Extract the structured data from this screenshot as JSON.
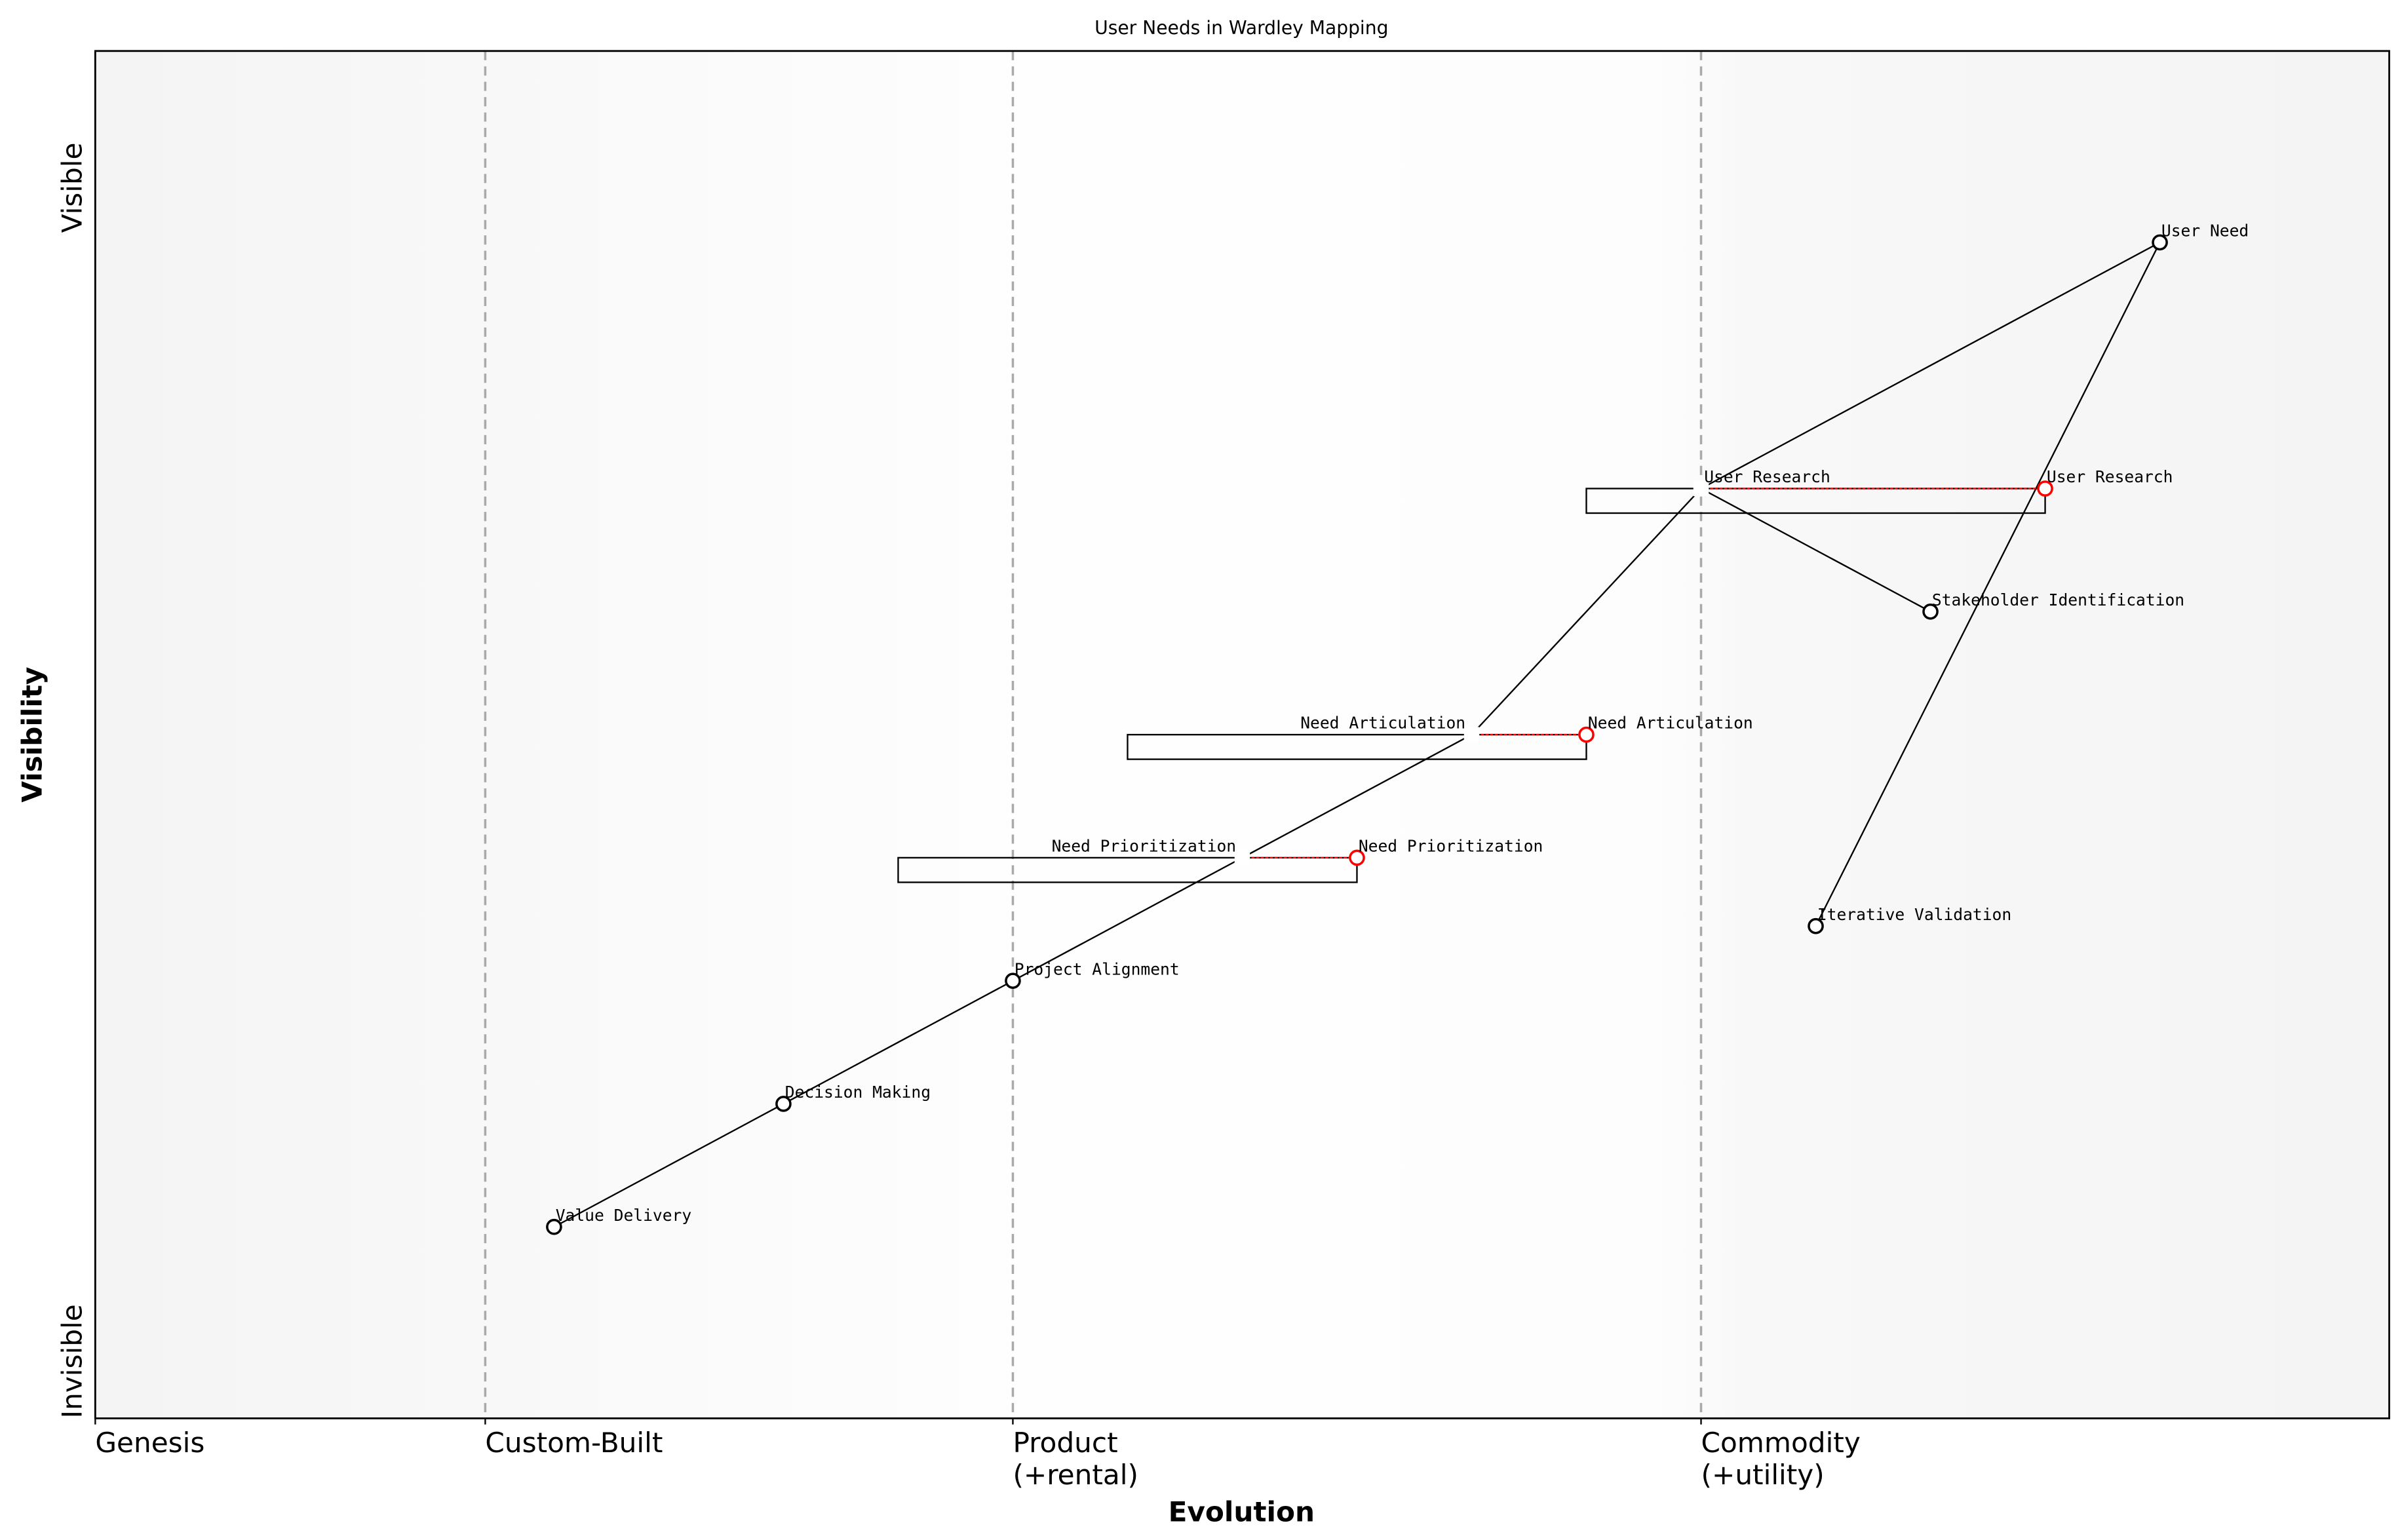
{
  "chart_data": {
    "type": "scatter",
    "title": "User Needs in Wardley Mapping",
    "xlabel": "Evolution",
    "ylabel": "Visibility",
    "xlim": [
      0,
      1
    ],
    "ylim": [
      0,
      1
    ],
    "x_ticks": [
      {
        "value": 0.0,
        "label": "Genesis"
      },
      {
        "value": 0.17,
        "label": "Custom-Built"
      },
      {
        "value": 0.4,
        "label": "Product\n(+rental)"
      },
      {
        "value": 0.7,
        "label": "Commodity\n(+utility)"
      }
    ],
    "y_ticks": [
      {
        "value": 0.0,
        "label": "Invisible"
      },
      {
        "value": 0.9,
        "label": "Visible"
      }
    ],
    "stage_dividers": [
      0.17,
      0.4,
      0.7
    ],
    "grid": false,
    "components": [
      {
        "name": "User Need",
        "x": 0.9,
        "y": 0.86
      },
      {
        "name": "User Research",
        "x": 0.7,
        "y": 0.68,
        "evolves_to": 0.85
      },
      {
        "name": "Stakeholder Identification",
        "x": 0.8,
        "y": 0.59
      },
      {
        "name": "Need Articulation",
        "x": 0.6,
        "y": 0.5,
        "evolves_to": 0.65
      },
      {
        "name": "Need Prioritization",
        "x": 0.5,
        "y": 0.41,
        "evolves_to": 0.55
      },
      {
        "name": "Project Alignment",
        "x": 0.4,
        "y": 0.32
      },
      {
        "name": "Decision Making",
        "x": 0.3,
        "y": 0.23
      },
      {
        "name": "Value Delivery",
        "x": 0.2,
        "y": 0.14
      },
      {
        "name": "Iterative Validation",
        "x": 0.75,
        "y": 0.36
      }
    ],
    "links": [
      [
        "User Need",
        "User Research"
      ],
      [
        "User Need",
        "Iterative Validation"
      ],
      [
        "User Research",
        "Stakeholder Identification"
      ],
      [
        "User Research",
        "Need Articulation"
      ],
      [
        "Need Articulation",
        "Need Prioritization"
      ],
      [
        "Need Prioritization",
        "Project Alignment"
      ],
      [
        "Project Alignment",
        "Decision Making"
      ],
      [
        "Decision Making",
        "Value Delivery"
      ]
    ],
    "colors": {
      "node": "#000000",
      "evolved_node": "#ff0000",
      "divider": "#aaaaaa"
    }
  }
}
